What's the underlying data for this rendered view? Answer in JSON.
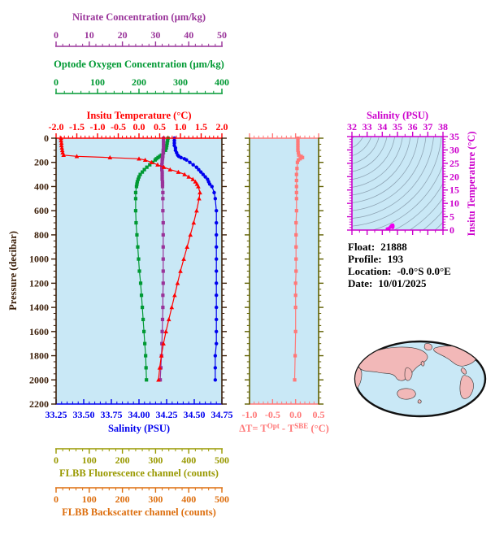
{
  "colors": {
    "plot_bg": "#C9E8F6",
    "pressure_axis": "#3B1E08",
    "nitrate": "#993399",
    "oxygen": "#009933",
    "temperature": "#FF0000",
    "salinity": "#0000EE",
    "fluorescence": "#999900",
    "backscatter": "#DD6E0E",
    "delta": "#FF7878",
    "delta_side_axis": "#606000",
    "ts_frame": "#CC00CC",
    "ts_points": "#EE00EE",
    "ts_contours": "#8FA5B5",
    "map_land": "#F2B8B8",
    "map_ocean": "#C9E8F6",
    "map_outline": "#111111",
    "text": "#000000"
  },
  "info": {
    "lines": [
      {
        "label": "Float:",
        "value": "21888"
      },
      {
        "label": "Profile:",
        "value": "193"
      },
      {
        "label": "Location:",
        "value": "-0.0°S  0.0°E"
      },
      {
        "label": "Date:",
        "value": "10/01/2025"
      }
    ]
  },
  "chart_data": [
    {
      "id": "profile",
      "type": "line",
      "plot_bg": "#C9E8F6",
      "y_axis": {
        "title": "Pressure (decibar)",
        "min": 0,
        "max": 2200,
        "major": 200,
        "minor": 50,
        "decimals": 0,
        "color": "#3B1E08"
      },
      "x_axes": [
        {
          "id": "nitrate",
          "title": "Nitrate Concentration (µm/kg)",
          "min": 0,
          "max": 50,
          "major": 10,
          "minor": 2,
          "decimals": 0,
          "color": "#993399"
        },
        {
          "id": "oxygen",
          "title": "Optode Oxygen Concentration (µm/kg)",
          "min": 0,
          "max": 400,
          "major": 100,
          "minor": 20,
          "decimals": 0,
          "color": "#009933"
        },
        {
          "id": "temperature",
          "title": "Insitu Temperature (°C)",
          "min": -2,
          "max": 2,
          "major": 0.5,
          "minor": 0.1,
          "decimals": 1,
          "color": "#FF0000"
        },
        {
          "id": "salinity",
          "title": "Salinity (PSU)",
          "min": 33.25,
          "max": 34.75,
          "major": 0.25,
          "minor": 0.05,
          "decimals": 2,
          "color": "#0000EE"
        },
        {
          "id": "fluorescence",
          "title": "FLBB Fluorescence channel (counts)",
          "min": 0,
          "max": 500,
          "major": 100,
          "minor": 20,
          "decimals": 0,
          "color": "#999900"
        },
        {
          "id": "backscatter",
          "title": "FLBB Backscatter channel (counts)",
          "min": 0,
          "max": 500,
          "major": 100,
          "minor": 20,
          "decimals": 0,
          "color": "#DD6E0E"
        }
      ],
      "pressure": [
        0,
        20,
        40,
        60,
        80,
        100,
        120,
        140,
        150,
        160,
        170,
        180,
        200,
        220,
        240,
        260,
        280,
        300,
        320,
        340,
        360,
        380,
        400,
        450,
        500,
        600,
        700,
        800,
        900,
        1000,
        1100,
        1200,
        1300,
        1400,
        1500,
        1600,
        1700,
        1800,
        1900,
        2000
      ],
      "series": [
        {
          "name": "Insitu Temperature",
          "axis": "temperature",
          "marker": "triangle",
          "color": "#FF0000",
          "values": [
            -1.88,
            -1.88,
            -1.87,
            -1.87,
            -1.86,
            -1.85,
            -1.84,
            -1.82,
            -1.5,
            -0.7,
            0.0,
            0.15,
            0.3,
            0.45,
            0.6,
            0.75,
            0.95,
            1.1,
            1.2,
            1.3,
            1.36,
            1.4,
            1.43,
            1.47,
            1.45,
            1.39,
            1.32,
            1.24,
            1.16,
            1.08,
            1.0,
            0.93,
            0.86,
            0.79,
            0.72,
            0.65,
            0.59,
            0.54,
            0.5,
            0.47
          ]
        },
        {
          "name": "Salinity",
          "axis": "salinity",
          "marker": "circle",
          "color": "#0000EE",
          "values": [
            34.32,
            34.32,
            34.32,
            34.32,
            34.33,
            34.33,
            34.34,
            34.35,
            34.36,
            34.38,
            34.41,
            34.43,
            34.46,
            34.49,
            34.52,
            34.54,
            34.56,
            34.58,
            34.6,
            34.62,
            34.63,
            34.64,
            34.66,
            34.68,
            34.69,
            34.7,
            34.7,
            34.7,
            34.7,
            34.7,
            34.7,
            34.7,
            34.7,
            34.7,
            34.7,
            34.7,
            34.7,
            34.69,
            34.69,
            34.69
          ]
        },
        {
          "name": "Optode Oxygen",
          "axis": "oxygen",
          "marker": "square",
          "color": "#009933",
          "values": [
            270,
            269,
            268,
            267,
            266,
            264,
            259,
            254,
            250,
            246,
            242,
            239,
            233,
            226,
            219,
            213,
            208,
            203,
            200,
            198,
            196,
            195,
            194,
            192,
            192,
            192,
            193,
            195,
            197,
            199,
            201,
            204,
            206,
            208,
            210,
            212,
            214,
            216,
            217,
            218
          ]
        },
        {
          "name": "Nitrate",
          "axis": "nitrate",
          "marker": "square",
          "color": "#993399",
          "values": [
            32.4,
            32.4,
            32.4,
            32.4,
            32.4,
            32.3,
            32.3,
            32.2,
            32.2,
            32.1,
            32.1,
            32.0,
            32.0,
            31.9,
            31.9,
            31.9,
            32.0,
            32.0,
            32.0,
            32.0,
            32.1,
            32.1,
            32.1,
            32.2,
            32.2,
            32.2,
            32.3,
            32.3,
            32.3,
            32.3,
            32.3,
            32.3,
            32.2,
            32.2,
            32.1,
            32.0,
            31.9,
            31.8,
            31.6,
            31.4
          ]
        }
      ]
    },
    {
      "id": "delta_t",
      "type": "line",
      "plot_bg": "#C9E8F6",
      "x_axis": {
        "title_parts": [
          {
            "t": "ΔT= T"
          },
          {
            "t": "Opt",
            "sup": true
          },
          {
            "t": " - T"
          },
          {
            "t": "SBE",
            "sup": true
          },
          {
            "t": " (°C)"
          }
        ],
        "min": -1,
        "max": 0.5,
        "major": 0.5,
        "minor": 0.1,
        "decimals": 1,
        "color": "#FF7878"
      },
      "side_axis": {
        "min": 0,
        "max": 2200,
        "major": 200,
        "minor": 50,
        "color": "#606000"
      },
      "marker": "square",
      "color": "#FF7878",
      "pressure": [
        0,
        20,
        40,
        60,
        80,
        100,
        120,
        140,
        150,
        160,
        170,
        180,
        200,
        250,
        300,
        350,
        400,
        450,
        500,
        600,
        700,
        800,
        900,
        1000,
        1100,
        1200,
        1300,
        1400,
        1600,
        1800,
        2000
      ],
      "values": [
        0.05,
        0.05,
        0.05,
        0.05,
        0.05,
        0.05,
        0.06,
        0.07,
        0.12,
        0.15,
        0.1,
        0.06,
        0.04,
        0.03,
        0.02,
        0.02,
        0.02,
        0.02,
        0.02,
        0.02,
        0.01,
        0.01,
        0.01,
        0.01,
        0.01,
        0.0,
        0.0,
        0.0,
        0.0,
        -0.01,
        -0.02
      ]
    },
    {
      "id": "ts_diagram",
      "type": "scatter",
      "plot_bg": "#C9E8F6",
      "frame_color": "#CC00CC",
      "x_axis": {
        "title": "Salinity (PSU)",
        "min": 32,
        "max": 38,
        "major": 1,
        "minor": 0.5,
        "decimals": 0,
        "color": "#CC00CC"
      },
      "y_axis": {
        "title": "Insitu Temperature (°C)",
        "min": 0,
        "max": 35,
        "major": 5,
        "minor": 1,
        "decimals": 0,
        "color": "#CC00CC"
      },
      "point_color": "#EE00EE",
      "contour_color": "#8FA5B5",
      "points_source": "profile salinity vs temperature"
    }
  ],
  "map": {
    "land": "#F2B8B8",
    "ocean": "#C9E8F6",
    "outline": "#111111"
  }
}
